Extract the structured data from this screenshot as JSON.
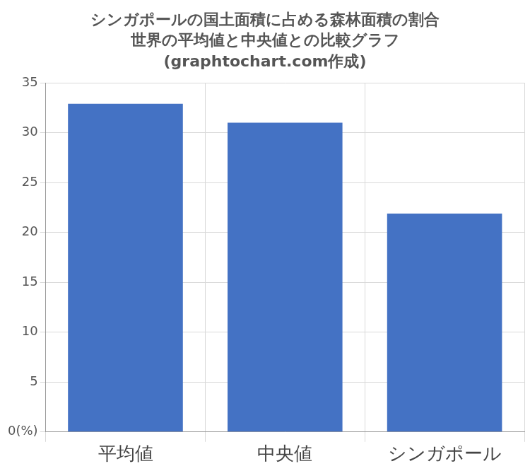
{
  "chart_data": {
    "type": "bar",
    "title": [
      "シンガポールの国土面積に占める森林面積の割合",
      "世界の平均値と中央値との比較グラフ",
      "(graphtochart.com作成)"
    ],
    "categories": [
      "平均値",
      "中央値",
      "シンガポール"
    ],
    "values": [
      32.9,
      31.0,
      21.9
    ],
    "color": "#4472c4",
    "ylim": [
      0,
      35
    ],
    "yticks": [
      {
        "value": 0,
        "label": "0(%)"
      },
      5,
      10,
      15,
      20,
      25,
      30,
      35
    ],
    "grid": true
  }
}
